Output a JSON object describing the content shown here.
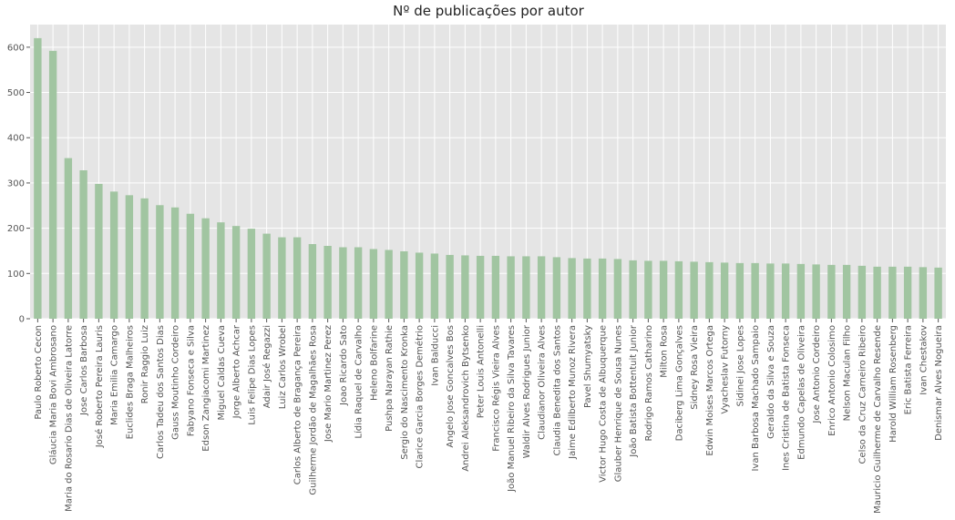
{
  "chart_data": {
    "type": "bar",
    "title": "Nº de publicações por autor",
    "xlabel": "",
    "ylabel": "",
    "ylim": [
      0,
      650
    ],
    "yticks": [
      0,
      100,
      200,
      300,
      400,
      500,
      600
    ],
    "grid": true,
    "colors": {
      "bar": "#a1c5a1",
      "background": "#e5e5e5",
      "grid": "#ffffff"
    },
    "categories": [
      "Paulo Roberto Cecon",
      "Gláucia Maria Bovi Ambrosano",
      "Maria do Rosario Dias de Oliveira Latorre",
      "Jose Carlos Barbosa",
      "José Roberto Pereira Lauris",
      "Maria Emilia Camargo",
      "Euclides Braga Malheiros",
      "Ronir Raggio Luiz",
      "Carlos Tadeu dos Santos Dias",
      "Gauss Moutinho Cordeiro",
      "Fabyano Fonseca e Silva",
      "Edson Zangiacomi Martinez",
      "Miguel Caldas Cueva",
      "Jorge Alberto Achcar",
      "Luis Felipe Dias Lopes",
      "Adair José Regazzi",
      "Luiz Carlos Wrobel",
      "Carlos Alberto de Bragança Pereira",
      "Guilherme Jordão de Magalhães Rosa",
      "Jose Mario Martinez Perez",
      "Joao Ricardo Sato",
      "Lídia Raquel de Carvalho",
      "Heleno Bolfarine",
      "Pushpa Narayan Rathie",
      "Sergio do Nascimento Kronka",
      "Clarice Garcia Borges Demétrio",
      "Ivan Balducci",
      "Angelo Jose Goncalves Bos",
      "Andrei Aleksandrovich Bytsenko",
      "Peter Louis Antonelli",
      "Francisco Régis Vieira Alves",
      "João Manuel Ribeiro da Silva Tavares",
      "Waldir Alves Rodrigues Junior",
      "Claudianor Oliveira Alves",
      "Claudia Benedita dos Santos",
      "Jaime Edilberto Munoz Rivera",
      "Pavel Shumyatsky",
      "Victor Hugo Costa de Albuquerque",
      "Glauber Henrique de Sousa Nunes",
      "João Batista Bottentuit Junior",
      "Rodrigo Ramos Catharino",
      "Milton Rosa",
      "Daciberg Lima Gonçalves",
      "Sidney Rosa Vieira",
      "Edwin Moises Marcos Ortega",
      "Vyacheslav Futorny",
      "Sidinei Jose Lopes",
      "Ivan Barbosa Machado Sampaio",
      "Geraldo da Silva e Souza",
      "Ines Cristina de Batista Fonseca",
      "Edmundo Capelas de Oliveira",
      "Jose Antonio Cordeiro",
      "Enrico Antonio Colosimo",
      "Nelson Maculan Filho",
      "Celso da Cruz Carneiro Ribeiro",
      "Mauricio Guilherme de Carvalho Resende",
      "Harold William Rosenberg",
      "Eric Batista Ferreira",
      "Ivan Chestakov",
      "Denismar Alves Nogueira"
    ],
    "values": [
      620,
      592,
      355,
      328,
      298,
      281,
      273,
      266,
      251,
      246,
      232,
      222,
      213,
      205,
      199,
      188,
      180,
      180,
      165,
      161,
      158,
      158,
      154,
      152,
      149,
      146,
      144,
      141,
      140,
      139,
      139,
      138,
      138,
      138,
      136,
      134,
      133,
      133,
      132,
      129,
      128,
      128,
      127,
      126,
      125,
      124,
      123,
      123,
      122,
      122,
      121,
      120,
      119,
      119,
      117,
      115,
      115,
      115,
      114,
      113
    ]
  }
}
